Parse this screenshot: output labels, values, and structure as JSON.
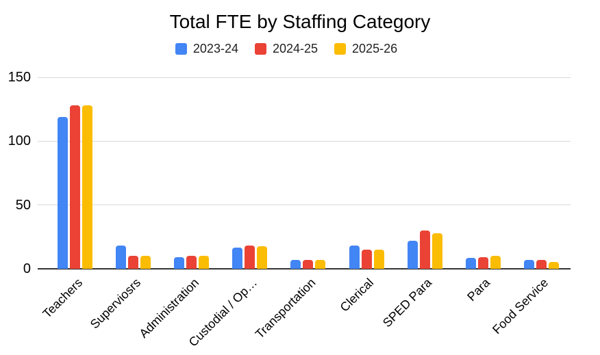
{
  "colors": {
    "grid": "#d9d9d9",
    "baseline": "#333333",
    "blue": "#4285F4",
    "red": "#EA4335",
    "yellow": "#FBBC04"
  },
  "chart_data": {
    "type": "bar",
    "title": "Total FTE by Staffing Category",
    "xlabel": "",
    "ylabel": "",
    "ylim": [
      0,
      150
    ],
    "y_ticks": [
      0,
      50,
      100,
      150
    ],
    "grid": true,
    "legend_position": "top",
    "categories": [
      "Teachers",
      "Superviosrs",
      "Administration",
      "Custodial / Op…",
      "Transportation",
      "Clerical",
      "SPED Para",
      "Para",
      "Food Service"
    ],
    "series": [
      {
        "name": "2023-24",
        "color": "#4285F4",
        "values": [
          119,
          18,
          9,
          16.5,
          7,
          18,
          22,
          8.5,
          7
        ]
      },
      {
        "name": "2024-25",
        "color": "#EA4335",
        "values": [
          128,
          10,
          10,
          18,
          7,
          15,
          30,
          9,
          7
        ]
      },
      {
        "name": "2025-26",
        "color": "#FBBC04",
        "values": [
          128,
          10,
          10,
          17.5,
          7,
          15,
          28,
          10,
          5.5
        ]
      }
    ]
  }
}
